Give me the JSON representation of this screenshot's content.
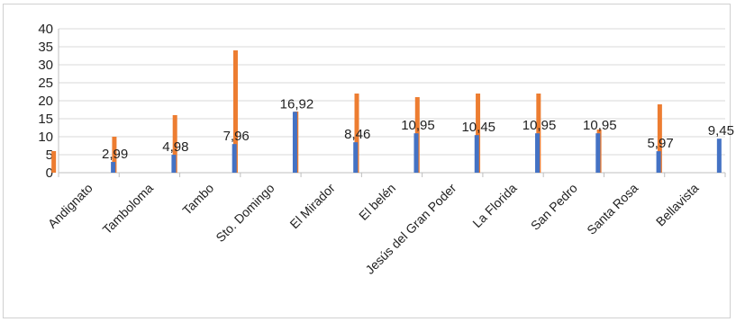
{
  "chart_data": {
    "type": "bar",
    "categories": [
      "Andignato",
      "Tamboloma",
      "Tambo",
      "Sto. Domingo",
      "El Mirador",
      "El belén",
      "Jesús del Gran Poder",
      "La Florida",
      "San Pedro",
      "Santa Rosa",
      "Bellavista"
    ],
    "series": [
      {
        "color": "#ed7d31",
        "values": [
          6,
          10,
          16,
          34,
          17,
          22,
          21,
          22,
          22,
          12,
          19
        ]
      },
      {
        "color": "#4472c4",
        "values": [
          2.99,
          4.98,
          7.96,
          16.92,
          8.46,
          10.95,
          10.45,
          10.95,
          10.95,
          5.97,
          9.45
        ],
        "data_labels": [
          "2,99",
          "4,98",
          "7,96",
          "16,92",
          "8,46",
          "10,95",
          "10,45",
          "10,95",
          "10,95",
          "5,97",
          "9,45"
        ]
      }
    ],
    "yticks": [
      "0",
      "5",
      "10",
      "15",
      "20",
      "25",
      "30",
      "35",
      "40"
    ],
    "ylim": [
      0,
      40
    ],
    "grid": true,
    "legend": "none"
  }
}
